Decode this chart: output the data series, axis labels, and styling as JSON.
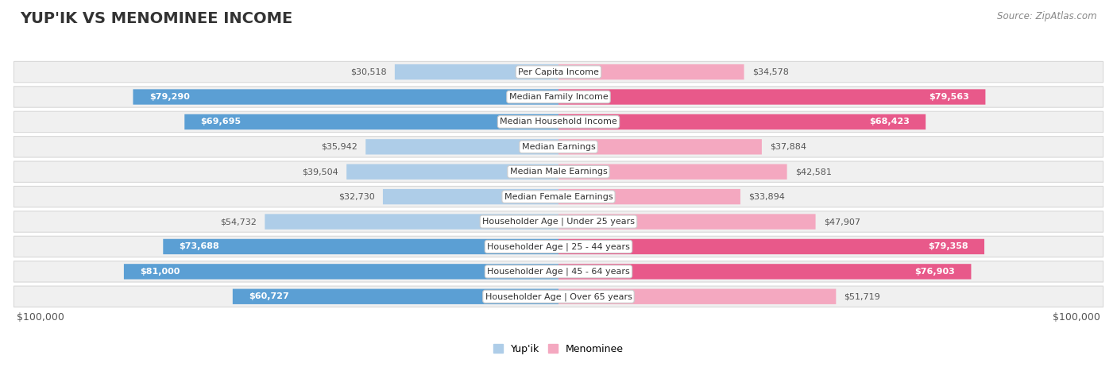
{
  "title": "YUP'IK VS MENOMINEE INCOME",
  "source": "Source: ZipAtlas.com",
  "categories": [
    "Per Capita Income",
    "Median Family Income",
    "Median Household Income",
    "Median Earnings",
    "Median Male Earnings",
    "Median Female Earnings",
    "Householder Age | Under 25 years",
    "Householder Age | 25 - 44 years",
    "Householder Age | 45 - 64 years",
    "Householder Age | Over 65 years"
  ],
  "yupik_values": [
    30518,
    79290,
    69695,
    35942,
    39504,
    32730,
    54732,
    73688,
    81000,
    60727
  ],
  "menominee_values": [
    34578,
    79563,
    68423,
    37884,
    42581,
    33894,
    47907,
    79358,
    76903,
    51719
  ],
  "yupik_color_dark": "#5b9fd4",
  "yupik_color_light": "#aecde8",
  "menominee_color_dark": "#e8598a",
  "menominee_color_light": "#f4a8c0",
  "yupik_threshold": 60000,
  "menominee_threshold": 60000,
  "max_value": 100000,
  "x_min_label": "$100,000",
  "x_max_label": "$100,000",
  "legend_yupik": "Yup'ik",
  "legend_menominee": "Menominee",
  "row_bg_color": "#f0f0f0",
  "row_border_color": "#d8d8d8",
  "title_fontsize": 14,
  "label_fontsize": 8.5,
  "value_fontsize": 8.5
}
